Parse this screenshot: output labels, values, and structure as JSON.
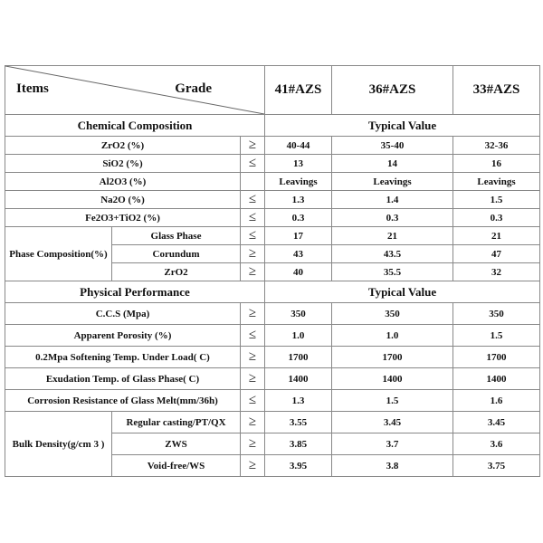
{
  "header": {
    "items": "Items",
    "grade": "Grade",
    "grades": [
      "41#AZS",
      "36#AZS",
      "33#AZS"
    ]
  },
  "chemical": {
    "title": "Chemical Composition",
    "typical": "Typical Value",
    "rows": [
      {
        "label": "ZrO2 (%)",
        "sym": "≥",
        "v": [
          "40-44",
          "35-40",
          "32-36"
        ]
      },
      {
        "label": "SiO2 (%)",
        "sym": "≤",
        "v": [
          "13",
          "14",
          "16"
        ]
      },
      {
        "label": "Al2O3 (%)",
        "sym": "",
        "v": [
          "Leavings",
          "Leavings",
          "Leavings"
        ]
      },
      {
        "label": "Na2O (%)",
        "sym": "≤",
        "v": [
          "1.3",
          "1.4",
          "1.5"
        ]
      },
      {
        "label": "Fe2O3+TiO2 (%)",
        "sym": "≤",
        "v": [
          "0.3",
          "0.3",
          "0.3"
        ]
      }
    ],
    "phase": {
      "label": "Phase Composition(%)",
      "rows": [
        {
          "label": "Glass Phase",
          "sym": "≤",
          "v": [
            "17",
            "21",
            "21"
          ]
        },
        {
          "label": "Corundum",
          "sym": "≥",
          "v": [
            "43",
            "43.5",
            "47"
          ]
        },
        {
          "label": "ZrO2",
          "sym": "≥",
          "v": [
            "40",
            "35.5",
            "32"
          ]
        }
      ]
    }
  },
  "physical": {
    "title": "Physical Performance",
    "typical": "Typical Value",
    "rows": [
      {
        "label": "C.C.S (Mpa)",
        "sym": "≥",
        "v": [
          "350",
          "350",
          "350"
        ]
      },
      {
        "label": "Apparent Porosity (%)",
        "sym": "≤",
        "v": [
          "1.0",
          "1.0",
          "1.5"
        ]
      },
      {
        "label": "0.2Mpa Softening Temp. Under Load( C)",
        "sym": "≥",
        "v": [
          "1700",
          "1700",
          "1700"
        ]
      },
      {
        "label": "Exudation Temp. of Glass Phase( C)",
        "sym": "≥",
        "v": [
          "1400",
          "1400",
          "1400"
        ]
      },
      {
        "label": "Corrosion Resistance of Glass Melt(mm/36h)",
        "sym": "≤",
        "v": [
          "1.3",
          "1.5",
          "1.6"
        ]
      }
    ],
    "bulk": {
      "label": "Bulk Density(g/cm 3 )",
      "rows": [
        {
          "label": "Regular casting/PT/QX",
          "sym": "≥",
          "v": [
            "3.55",
            "3.45",
            "3.45"
          ]
        },
        {
          "label": "ZWS",
          "sym": "≥",
          "v": [
            "3.85",
            "3.7",
            "3.6"
          ]
        },
        {
          "label": "Void-free/WS",
          "sym": "≥",
          "v": [
            "3.95",
            "3.8",
            "3.75"
          ]
        }
      ]
    }
  }
}
